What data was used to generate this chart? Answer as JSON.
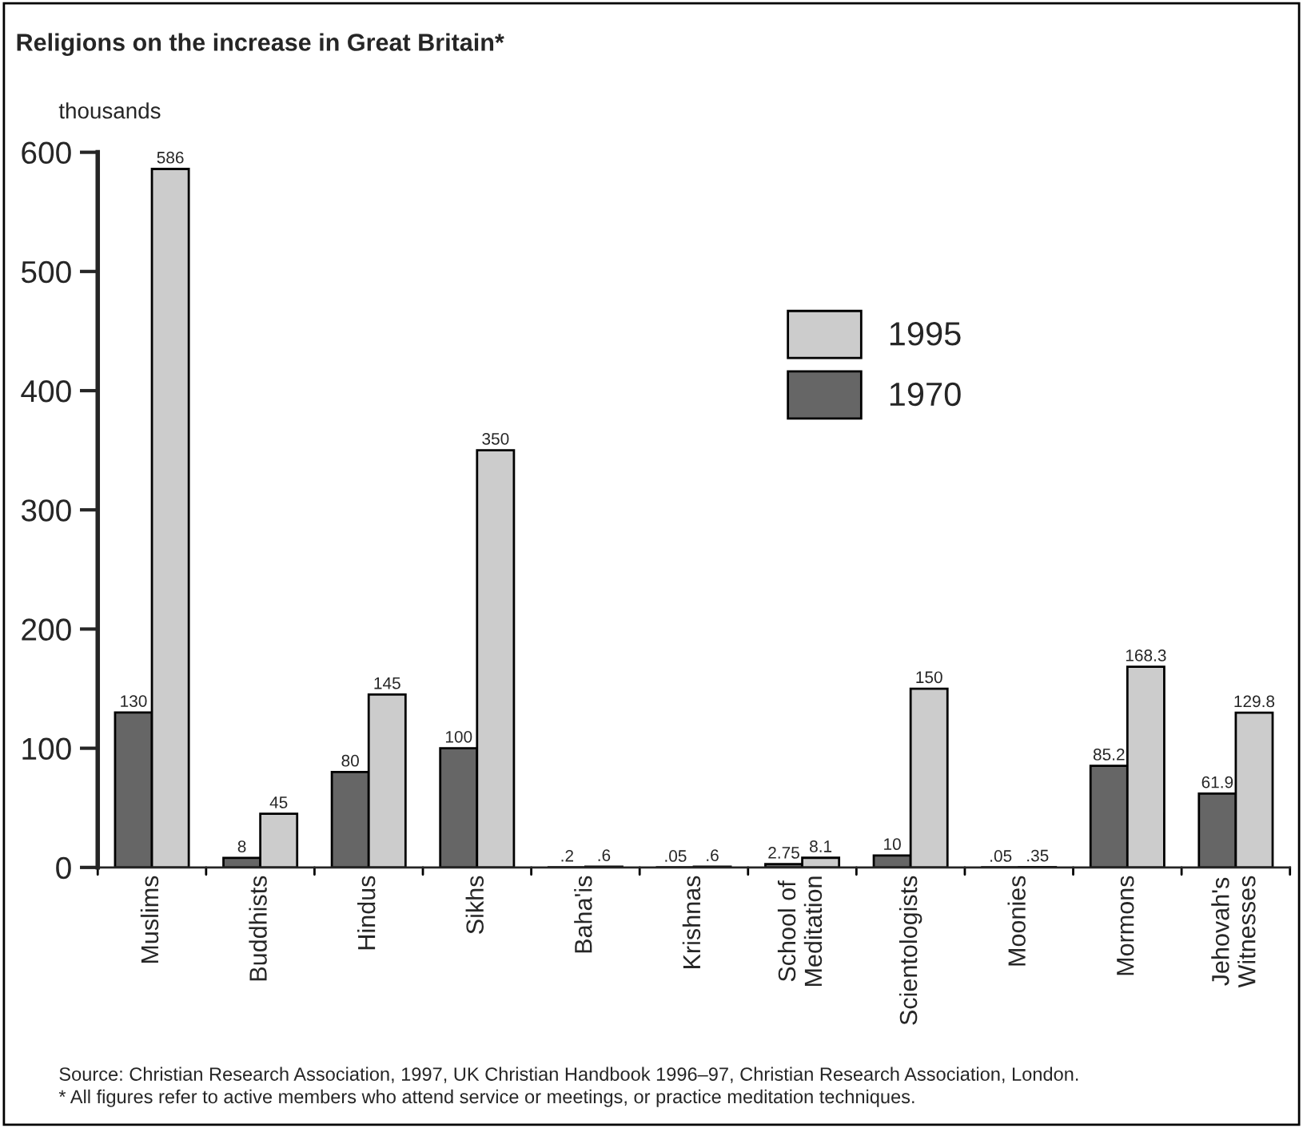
{
  "chart_data": {
    "type": "bar",
    "title": "Religions on the increase in Great Britain*",
    "ylabel": "thousands",
    "categories": [
      "Muslims",
      "Buddhists",
      "Hindus",
      "Sikhs",
      "Baha'is",
      "Krishnas",
      "School of\nMeditation",
      "Scientologists",
      "Moonies",
      "Mormons",
      "Jehovah's\nWitnesses"
    ],
    "series": [
      {
        "name": "1970",
        "color": "#666666",
        "values": [
          130,
          8,
          80,
          100,
          0.2,
          0.05,
          2.75,
          10,
          0.05,
          85.2,
          61.9
        ],
        "value_labels": [
          "130",
          "8",
          "80",
          "100",
          ".2",
          ".05",
          "2.75",
          "10",
          ".05",
          "85.2",
          "61.9"
        ]
      },
      {
        "name": "1995",
        "color": "#cccccc",
        "values": [
          586,
          45,
          145,
          350,
          0.6,
          0.6,
          8.1,
          150,
          0.35,
          168.3,
          129.8
        ],
        "value_labels": [
          "586",
          "45",
          "145",
          "350",
          ".6",
          ".6",
          "8.1",
          "150",
          ".35",
          "168.3",
          "129.8"
        ]
      }
    ],
    "ylim": [
      0,
      600
    ],
    "yticks": [
      0,
      100,
      200,
      300,
      400,
      500,
      600
    ],
    "grid": false,
    "legend": "top right",
    "annotations": [
      "Source: Christian Research Association, 1997, UK Christian Handbook 1996–97, Christian Research Association, London.",
      "* All figures refer to active members who attend service or meetings, or practice meditation techniques."
    ]
  }
}
